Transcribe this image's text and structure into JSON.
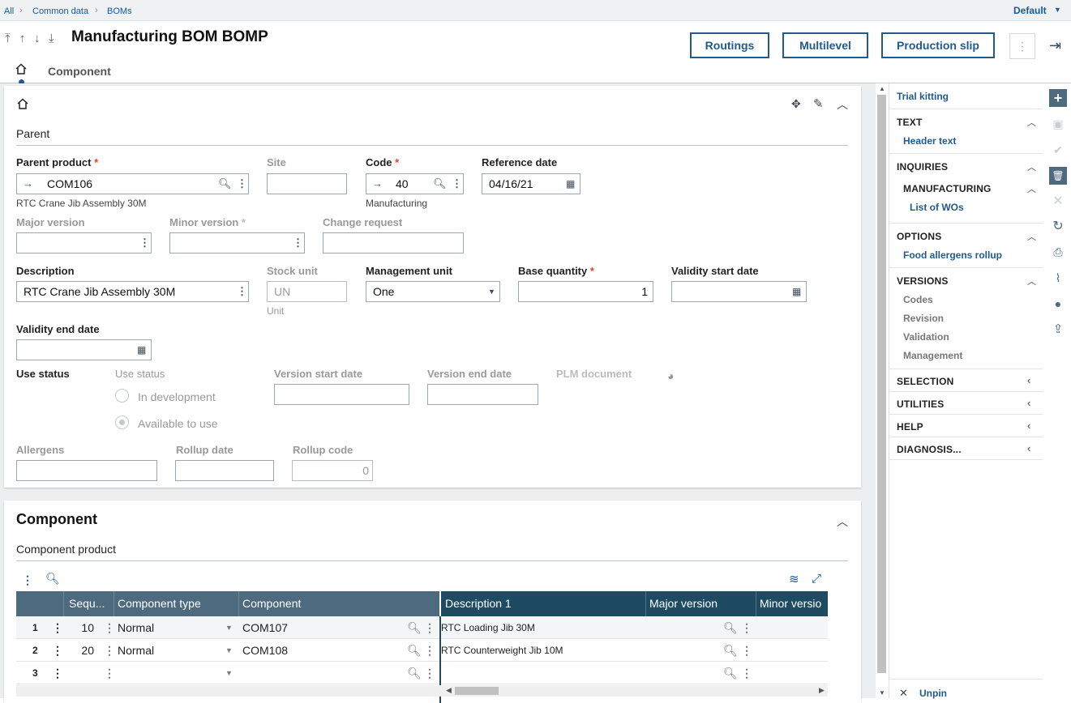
{
  "breadcrumb": {
    "all": "All",
    "common": "Common data",
    "boms": "BOMs",
    "default": "Default"
  },
  "header": {
    "title": "Manufacturing BOM BOMP",
    "btn_routings": "Routings",
    "btn_multilevel": "Multilevel",
    "btn_production_slip": "Production slip",
    "tab_component": "Component"
  },
  "parent": {
    "section": "Parent",
    "parent_product_label": "Parent product",
    "parent_product_value": "COM106",
    "parent_product_desc": "RTC Crane Jib Assembly 30M",
    "site_label": "Site",
    "site_value": "",
    "code_label": "Code",
    "code_value": "40",
    "code_desc": "Manufacturing",
    "reference_date_label": "Reference date",
    "reference_date_value": "04/16/21",
    "major_version_label": "Major version",
    "minor_version_label": "Minor version",
    "change_request_label": "Change request",
    "description_label": "Description",
    "description_value": "RTC Crane Jib Assembly 30M",
    "stock_unit_label": "Stock unit",
    "stock_unit_value": "UN",
    "stock_unit_desc": "Unit",
    "management_unit_label": "Management unit",
    "management_unit_value": "One",
    "base_quantity_label": "Base quantity",
    "base_quantity_value": "1",
    "validity_start_label": "Validity start date",
    "validity_end_label": "Validity end date",
    "use_status_label": "Use status",
    "use_status_group_label": "Use status",
    "opt_in_development": "In development",
    "opt_available": "Available to use",
    "version_start_label": "Version start date",
    "version_end_label": "Version end date",
    "plm_label": "PLM document",
    "allergens_label": "Allergens",
    "rollup_date_label": "Rollup date",
    "rollup_code_label": "Rollup code",
    "rollup_code_value": "0"
  },
  "component": {
    "title": "Component",
    "subsection": "Component product",
    "columns": {
      "seq": "Sequ...",
      "type": "Component type",
      "component": "Component",
      "desc": "Description 1",
      "major": "Major version",
      "minor": "Minor versio"
    },
    "rows": [
      {
        "num": "1",
        "seq": "10",
        "type": "Normal",
        "component": "COM107",
        "desc": "RTC Loading Jib 30M"
      },
      {
        "num": "2",
        "seq": "20",
        "type": "Normal",
        "component": "COM108",
        "desc": "RTC Counterweight Jib 10M"
      },
      {
        "num": "3",
        "seq": "",
        "type": "",
        "component": "",
        "desc": ""
      }
    ]
  },
  "right_panel": {
    "trial_kitting": "Trial kitting",
    "text": "TEXT",
    "header_text": "Header text",
    "inquiries": "INQUIRIES",
    "manufacturing": "MANUFACTURING",
    "list_wos": "List of WOs",
    "options": "OPTIONS",
    "food_allergens": "Food allergens rollup",
    "versions": "VERSIONS",
    "codes": "Codes",
    "revision": "Revision",
    "validation": "Validation",
    "management": "Management",
    "selection": "SELECTION",
    "utilities": "UTILITIES",
    "help": "HELP",
    "diagnosis": "DIAGNOSIS...",
    "unpin": "Unpin"
  },
  "colors": {
    "accent": "#215a8c",
    "grid_header_left": "#4d6a7f",
    "grid_header_right": "#1e4a62",
    "required": "#e0462b"
  }
}
